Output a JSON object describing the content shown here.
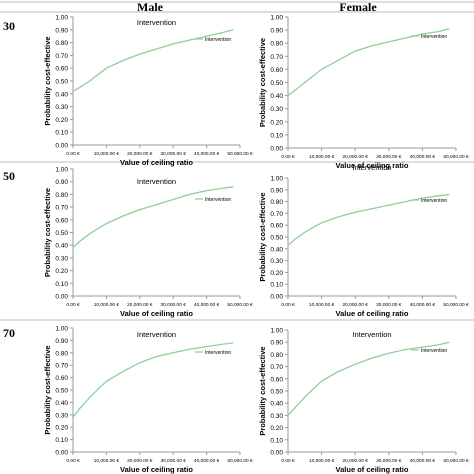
{
  "header": {
    "male": "Male",
    "female": "Female"
  },
  "rows": [
    {
      "age_label": "30"
    },
    {
      "age_label": "50"
    },
    {
      "age_label": "70"
    }
  ],
  "colors": {
    "curve": "#8fcf9a",
    "axis": "#999999",
    "grid_line": "#bbbbbb"
  },
  "chart_data": [
    {
      "type": "line",
      "age": "30",
      "sex": "Male",
      "title": "Intervention",
      "xlabel": "Value of ceiling ratio",
      "ylabel": "Probability cost-effective",
      "x_tick_labels": [
        "0.00 €",
        "10,000.00 €",
        "20,000.00 €",
        "30,000.00 €",
        "40,000.00 €",
        "50,000.00 €"
      ],
      "y_tick_labels": [
        "0.00",
        "0.10",
        "0.20",
        "0.30",
        "0.40",
        "0.50",
        "0.60",
        "0.70",
        "0.80",
        "0.90",
        "1.00"
      ],
      "xlim": [
        0,
        50000
      ],
      "ylim": [
        0,
        1
      ],
      "series": [
        {
          "name": "Intervention",
          "x": [
            0,
            2000,
            5000,
            8000,
            10000,
            15000,
            20000,
            25000,
            30000,
            35000,
            40000,
            45000,
            48000
          ],
          "y": [
            0.42,
            0.45,
            0.5,
            0.56,
            0.6,
            0.66,
            0.71,
            0.75,
            0.79,
            0.82,
            0.85,
            0.88,
            0.9
          ]
        }
      ]
    },
    {
      "type": "line",
      "age": "30",
      "sex": "Female",
      "title": "",
      "xlabel": "Value of ceiling ratio",
      "ylabel": "Probability cost-effective",
      "x_tick_labels": [
        "0.00 €",
        "10,000.00 €",
        "20,000.00 €",
        "30,000.00 €",
        "40,000.00 €",
        "50,000.00 €"
      ],
      "y_tick_labels": [
        "0.00",
        "0.10",
        "0.20",
        "0.30",
        "0.40",
        "0.50",
        "0.60",
        "0.70",
        "0.80",
        "0.90",
        "1.00"
      ],
      "xlim": [
        0,
        50000
      ],
      "ylim": [
        0,
        1
      ],
      "series": [
        {
          "name": "Intervention",
          "x": [
            0,
            2000,
            5000,
            8000,
            10000,
            15000,
            20000,
            25000,
            30000,
            35000,
            40000,
            45000,
            48000
          ],
          "y": [
            0.4,
            0.44,
            0.5,
            0.56,
            0.6,
            0.67,
            0.74,
            0.78,
            0.81,
            0.84,
            0.87,
            0.89,
            0.91
          ]
        }
      ]
    },
    {
      "type": "line",
      "age": "50",
      "sex": "Male",
      "title": "Intervention",
      "xlabel": "Value of ceiling ratio",
      "ylabel": "Probability cost-effective",
      "x_tick_labels": [
        "0.00 €",
        "10,000.00 €",
        "20,000.00 €",
        "30,000.00 €",
        "40,000.00 €",
        "50,000.00 €"
      ],
      "y_tick_labels": [
        "0.00",
        "0.10",
        "0.20",
        "0.30",
        "0.40",
        "0.50",
        "0.60",
        "0.70",
        "0.80",
        "0.90",
        "1.00"
      ],
      "xlim": [
        0,
        50000
      ],
      "ylim": [
        0,
        1
      ],
      "series": [
        {
          "name": "Intervention",
          "x": [
            0,
            2000,
            5000,
            8000,
            10000,
            15000,
            20000,
            25000,
            30000,
            35000,
            40000,
            45000,
            48000
          ],
          "y": [
            0.38,
            0.43,
            0.49,
            0.54,
            0.57,
            0.63,
            0.68,
            0.72,
            0.76,
            0.8,
            0.83,
            0.85,
            0.86
          ]
        }
      ]
    },
    {
      "type": "line",
      "age": "50",
      "sex": "Female",
      "title": "Intervention",
      "xlabel": "Value of ceiling ratio",
      "ylabel": "Probability cost-effective",
      "x_tick_labels": [
        "0.00 €",
        "10,000.00 €",
        "20,000.00 €",
        "30,000.00 €",
        "40,000.00 €",
        "50,000.00 €"
      ],
      "y_tick_labels": [
        "0.00",
        "0.10",
        "0.20",
        "0.30",
        "0.40",
        "0.50",
        "0.60",
        "0.70",
        "0.80",
        "0.90",
        "1.00"
      ],
      "xlim": [
        0,
        50000
      ],
      "ylim": [
        0,
        1
      ],
      "series": [
        {
          "name": "Intervention",
          "x": [
            0,
            2000,
            5000,
            8000,
            10000,
            15000,
            20000,
            25000,
            30000,
            35000,
            40000,
            45000,
            48000
          ],
          "y": [
            0.43,
            0.48,
            0.54,
            0.59,
            0.62,
            0.67,
            0.71,
            0.74,
            0.77,
            0.8,
            0.83,
            0.85,
            0.86
          ]
        }
      ]
    },
    {
      "type": "line",
      "age": "70",
      "sex": "Male",
      "title": "Intervention",
      "xlabel": "Value of ceiling ratio",
      "ylabel": "Probability cost-effective",
      "x_tick_labels": [
        "0.00 €",
        "10,000.00 €",
        "20,000.00 €",
        "30,000.00 €",
        "40,000.00 €",
        "50,000.00 €"
      ],
      "y_tick_labels": [
        "0.00",
        "0.10",
        "0.20",
        "0.30",
        "0.40",
        "0.50",
        "0.60",
        "0.70",
        "0.80",
        "0.90",
        "1.00"
      ],
      "xlim": [
        0,
        50000
      ],
      "ylim": [
        0,
        1
      ],
      "series": [
        {
          "name": "Intervention",
          "x": [
            0,
            2000,
            5000,
            8000,
            10000,
            15000,
            20000,
            25000,
            30000,
            35000,
            40000,
            45000,
            48000
          ],
          "y": [
            0.28,
            0.35,
            0.44,
            0.52,
            0.57,
            0.65,
            0.72,
            0.77,
            0.8,
            0.83,
            0.85,
            0.87,
            0.88
          ]
        }
      ]
    },
    {
      "type": "line",
      "age": "70",
      "sex": "Female",
      "title": "Intervention",
      "xlabel": "Value of ceiling ratio",
      "ylabel": "Probability cost-effective",
      "x_tick_labels": [
        "0.00 €",
        "10,000.00 €",
        "20,000.00 €",
        "30,000.00 €",
        "40,000.00 €",
        "50,000.00 €"
      ],
      "y_tick_labels": [
        "0.00",
        "0.10",
        "0.20",
        "0.30",
        "0.40",
        "0.50",
        "0.60",
        "0.70",
        "0.80",
        "0.90",
        "1.00"
      ],
      "xlim": [
        0,
        50000
      ],
      "ylim": [
        0,
        1
      ],
      "series": [
        {
          "name": "Intervention",
          "x": [
            0,
            2000,
            5000,
            8000,
            10000,
            15000,
            20000,
            25000,
            30000,
            35000,
            40000,
            45000,
            48000
          ],
          "y": [
            0.3,
            0.36,
            0.45,
            0.53,
            0.58,
            0.66,
            0.72,
            0.77,
            0.81,
            0.84,
            0.86,
            0.88,
            0.9
          ]
        }
      ]
    }
  ]
}
